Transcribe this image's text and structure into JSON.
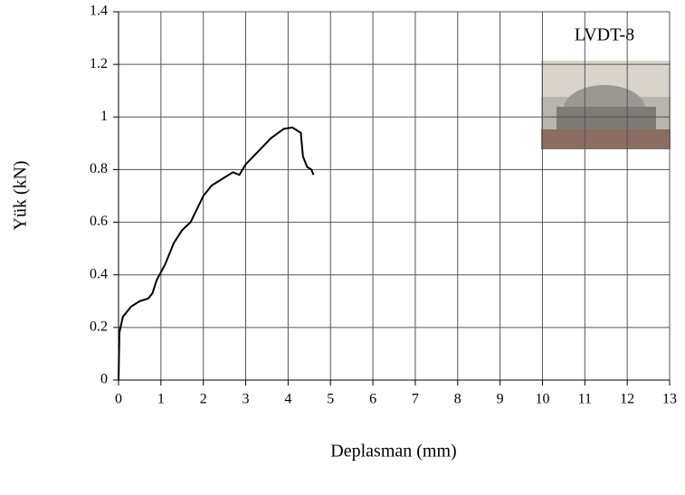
{
  "chart_data": {
    "type": "line",
    "x_label": "Deplasman (mm)",
    "y_label": "Yük (kN)",
    "annotation": "LVDT-8",
    "x": [
      0,
      0.02,
      0.1,
      0.3,
      0.5,
      0.7,
      0.8,
      0.9,
      1.1,
      1.3,
      1.5,
      1.7,
      2.0,
      2.2,
      2.5,
      2.7,
      2.85,
      3.0,
      3.3,
      3.6,
      3.9,
      4.1,
      4.3,
      4.35,
      4.45,
      4.55,
      4.6
    ],
    "series": [
      {
        "color": "#000000",
        "values": [
          0,
          0.18,
          0.24,
          0.28,
          0.3,
          0.31,
          0.33,
          0.38,
          0.44,
          0.52,
          0.57,
          0.6,
          0.7,
          0.74,
          0.77,
          0.79,
          0.78,
          0.82,
          0.87,
          0.92,
          0.955,
          0.96,
          0.94,
          0.85,
          0.81,
          0.8,
          0.78
        ]
      }
    ],
    "xlim": [
      0,
      13
    ],
    "xticks": [
      0,
      1,
      2,
      3,
      4,
      5,
      6,
      7,
      8,
      9,
      10,
      11,
      12,
      13
    ],
    "ylim": [
      0,
      1.4
    ],
    "yticks": [
      0,
      0.2,
      0.4,
      0.6,
      0.8,
      1,
      1.2,
      1.4
    ],
    "grid": true
  }
}
